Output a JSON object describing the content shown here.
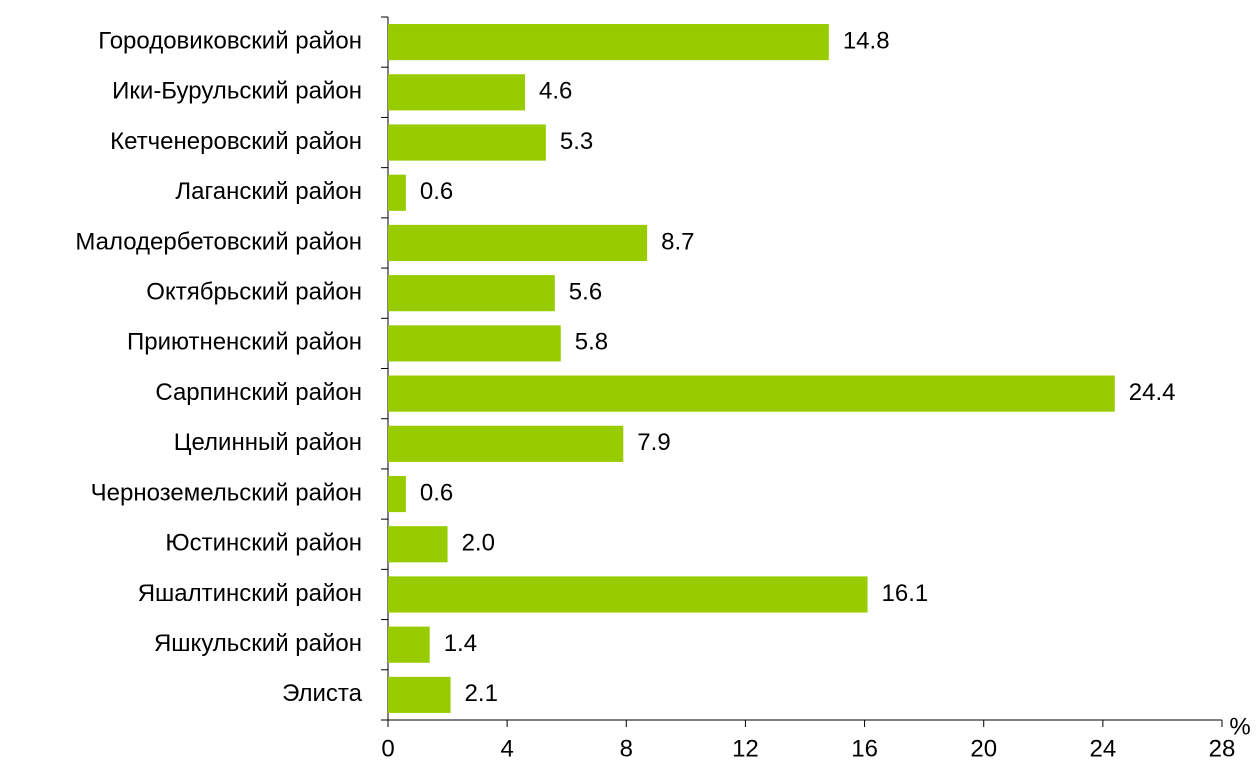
{
  "chart_data": {
    "type": "hbar",
    "x_label": "%",
    "categories": [
      "Городовиковский район",
      "Ики-Бурульский район",
      "Кетченеровский район",
      "Лаганский район",
      "Малодербетовский район",
      "Октябрьский район",
      "Приютненский район",
      "Сарпинский район",
      "Целинный район",
      "Черноземельский район",
      "Юстинский район",
      "Яшалтинский район",
      "Яшкульский район",
      "Элиста"
    ],
    "values": [
      14.8,
      4.6,
      5.3,
      0.6,
      8.7,
      5.6,
      5.8,
      24.4,
      7.9,
      0.6,
      2.0,
      16.1,
      1.4,
      2.1
    ],
    "value_labels": [
      "14.8",
      "4.6",
      "5.3",
      "0.6",
      "8.7",
      "5.6",
      "5.8",
      "24.4",
      "7.9",
      "0.6",
      "2.0",
      "16.1",
      "1.4",
      "2.1"
    ],
    "color": "#99cc00",
    "xlim": [
      0,
      28
    ],
    "xticks": [
      0,
      4,
      8,
      12,
      16,
      20,
      24,
      28
    ],
    "grid": false
  }
}
